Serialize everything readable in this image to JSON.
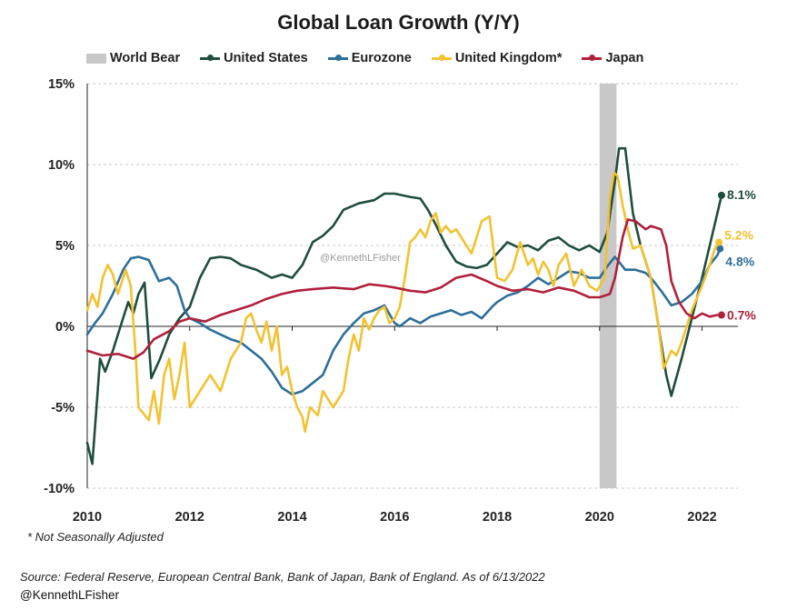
{
  "chart_data": {
    "type": "line",
    "title": "Global Loan Growth (Y/Y)",
    "xlabel": "",
    "ylabel": "",
    "xlim": [
      2010,
      2022.7
    ],
    "ylim": [
      -10,
      15
    ],
    "grid": true,
    "legend_position": "top",
    "x_ticks": [
      2010,
      2012,
      2014,
      2016,
      2018,
      2020,
      2022
    ],
    "x_tick_labels": [
      "2010",
      "2012",
      "2014",
      "2016",
      "2018",
      "2020",
      "2022"
    ],
    "y_ticks": [
      15,
      10,
      5,
      0,
      -5,
      -10
    ],
    "y_tick_labels": [
      "15%",
      "10%",
      "5%",
      "0%",
      "-5%",
      "-10%"
    ],
    "shaded_regions": [
      {
        "name": "World Bear",
        "start": 2020.0,
        "end": 2020.33,
        "color": "#c8c8c8"
      }
    ],
    "series": [
      {
        "name": "United States",
        "color": "#1f4e3d",
        "end_label": "8.1%",
        "points": [
          [
            2010.0,
            -7.2
          ],
          [
            2010.1,
            -8.5
          ],
          [
            2010.25,
            -2.0
          ],
          [
            2010.35,
            -2.8
          ],
          [
            2010.5,
            -1.5
          ],
          [
            2010.65,
            0.0
          ],
          [
            2010.8,
            1.5
          ],
          [
            2010.9,
            0.8
          ],
          [
            2011.0,
            2.0
          ],
          [
            2011.12,
            2.7
          ],
          [
            2011.25,
            -3.2
          ],
          [
            2011.42,
            -2.0
          ],
          [
            2011.6,
            -0.5
          ],
          [
            2011.8,
            0.5
          ],
          [
            2012.0,
            1.2
          ],
          [
            2012.2,
            3.0
          ],
          [
            2012.4,
            4.2
          ],
          [
            2012.6,
            4.3
          ],
          [
            2012.8,
            4.2
          ],
          [
            2013.0,
            3.8
          ],
          [
            2013.3,
            3.5
          ],
          [
            2013.6,
            3.0
          ],
          [
            2013.8,
            3.2
          ],
          [
            2014.0,
            3.0
          ],
          [
            2014.2,
            3.8
          ],
          [
            2014.4,
            5.2
          ],
          [
            2014.6,
            5.6
          ],
          [
            2014.8,
            6.2
          ],
          [
            2015.0,
            7.2
          ],
          [
            2015.3,
            7.6
          ],
          [
            2015.6,
            7.8
          ],
          [
            2015.8,
            8.2
          ],
          [
            2016.0,
            8.2
          ],
          [
            2016.3,
            8.0
          ],
          [
            2016.5,
            7.9
          ],
          [
            2016.65,
            7.2
          ],
          [
            2016.8,
            6.3
          ],
          [
            2017.0,
            5.0
          ],
          [
            2017.2,
            4.0
          ],
          [
            2017.4,
            3.7
          ],
          [
            2017.6,
            3.6
          ],
          [
            2017.8,
            3.8
          ],
          [
            2018.0,
            4.5
          ],
          [
            2018.2,
            5.2
          ],
          [
            2018.4,
            4.9
          ],
          [
            2018.6,
            5.0
          ],
          [
            2018.8,
            4.7
          ],
          [
            2019.0,
            5.3
          ],
          [
            2019.2,
            5.5
          ],
          [
            2019.4,
            5.0
          ],
          [
            2019.6,
            4.7
          ],
          [
            2019.8,
            5.0
          ],
          [
            2020.0,
            4.6
          ],
          [
            2020.15,
            5.8
          ],
          [
            2020.3,
            9.0
          ],
          [
            2020.38,
            11.0
          ],
          [
            2020.5,
            11.0
          ],
          [
            2020.65,
            7.0
          ],
          [
            2020.8,
            5.0
          ],
          [
            2021.0,
            3.0
          ],
          [
            2021.15,
            0.0
          ],
          [
            2021.3,
            -3.0
          ],
          [
            2021.4,
            -4.3
          ],
          [
            2021.6,
            -2.0
          ],
          [
            2021.8,
            0.5
          ],
          [
            2022.0,
            3.0
          ],
          [
            2022.15,
            5.0
          ],
          [
            2022.3,
            7.0
          ],
          [
            2022.38,
            8.1
          ]
        ]
      },
      {
        "name": "Eurozone",
        "color": "#2e6f99",
        "end_label": "4.8%",
        "points": [
          [
            2010.0,
            -0.5
          ],
          [
            2010.15,
            0.2
          ],
          [
            2010.3,
            0.8
          ],
          [
            2010.5,
            2.0
          ],
          [
            2010.7,
            3.5
          ],
          [
            2010.85,
            4.2
          ],
          [
            2011.0,
            4.3
          ],
          [
            2011.2,
            4.1
          ],
          [
            2011.4,
            2.8
          ],
          [
            2011.6,
            3.0
          ],
          [
            2011.75,
            2.5
          ],
          [
            2011.9,
            1.0
          ],
          [
            2012.0,
            0.5
          ],
          [
            2012.2,
            0.2
          ],
          [
            2012.4,
            -0.2
          ],
          [
            2012.6,
            -0.5
          ],
          [
            2012.8,
            -0.8
          ],
          [
            2013.0,
            -1.0
          ],
          [
            2013.2,
            -1.5
          ],
          [
            2013.4,
            -2.0
          ],
          [
            2013.6,
            -2.8
          ],
          [
            2013.8,
            -3.8
          ],
          [
            2014.0,
            -4.2
          ],
          [
            2014.2,
            -4.0
          ],
          [
            2014.4,
            -3.5
          ],
          [
            2014.6,
            -3.0
          ],
          [
            2014.8,
            -1.5
          ],
          [
            2015.0,
            -0.5
          ],
          [
            2015.2,
            0.2
          ],
          [
            2015.4,
            0.8
          ],
          [
            2015.6,
            1.0
          ],
          [
            2015.8,
            1.3
          ],
          [
            2016.0,
            0.2
          ],
          [
            2016.1,
            0.0
          ],
          [
            2016.3,
            0.5
          ],
          [
            2016.5,
            0.2
          ],
          [
            2016.7,
            0.6
          ],
          [
            2016.9,
            0.8
          ],
          [
            2017.1,
            1.0
          ],
          [
            2017.3,
            0.7
          ],
          [
            2017.5,
            0.9
          ],
          [
            2017.7,
            0.5
          ],
          [
            2017.9,
            1.2
          ],
          [
            2018.0,
            1.5
          ],
          [
            2018.2,
            1.9
          ],
          [
            2018.4,
            2.1
          ],
          [
            2018.6,
            2.5
          ],
          [
            2018.8,
            3.0
          ],
          [
            2019.0,
            2.6
          ],
          [
            2019.2,
            3.0
          ],
          [
            2019.4,
            3.4
          ],
          [
            2019.6,
            3.3
          ],
          [
            2019.8,
            3.0
          ],
          [
            2020.0,
            3.0
          ],
          [
            2020.15,
            3.7
          ],
          [
            2020.3,
            4.3
          ],
          [
            2020.5,
            3.5
          ],
          [
            2020.7,
            3.5
          ],
          [
            2020.9,
            3.3
          ],
          [
            2021.0,
            3.0
          ],
          [
            2021.2,
            2.2
          ],
          [
            2021.4,
            1.3
          ],
          [
            2021.6,
            1.5
          ],
          [
            2021.8,
            2.0
          ],
          [
            2022.0,
            2.8
          ],
          [
            2022.15,
            3.8
          ],
          [
            2022.3,
            4.4
          ],
          [
            2022.35,
            4.8
          ]
        ]
      },
      {
        "name": "United Kingdom*",
        "color": "#f2c232",
        "end_label": "5.2%",
        "points": [
          [
            2010.0,
            1.0
          ],
          [
            2010.1,
            2.0
          ],
          [
            2010.2,
            1.2
          ],
          [
            2010.3,
            3.0
          ],
          [
            2010.4,
            3.8
          ],
          [
            2010.5,
            3.2
          ],
          [
            2010.6,
            2.0
          ],
          [
            2010.75,
            3.5
          ],
          [
            2010.85,
            2.5
          ],
          [
            2010.95,
            -2.0
          ],
          [
            2011.0,
            -5.0
          ],
          [
            2011.2,
            -5.8
          ],
          [
            2011.3,
            -4.0
          ],
          [
            2011.4,
            -6.0
          ],
          [
            2011.5,
            -3.0
          ],
          [
            2011.6,
            -2.0
          ],
          [
            2011.7,
            -4.5
          ],
          [
            2011.8,
            -3.0
          ],
          [
            2011.9,
            -1.0
          ],
          [
            2012.0,
            -5.0
          ],
          [
            2012.2,
            -4.0
          ],
          [
            2012.4,
            -3.0
          ],
          [
            2012.6,
            -4.0
          ],
          [
            2012.8,
            -2.0
          ],
          [
            2013.0,
            -1.0
          ],
          [
            2013.1,
            0.5
          ],
          [
            2013.2,
            0.8
          ],
          [
            2013.3,
            -0.2
          ],
          [
            2013.4,
            -1.0
          ],
          [
            2013.5,
            0.3
          ],
          [
            2013.6,
            -1.5
          ],
          [
            2013.7,
            0.0
          ],
          [
            2013.8,
            -3.0
          ],
          [
            2013.9,
            -2.5
          ],
          [
            2014.0,
            -4.0
          ],
          [
            2014.1,
            -5.0
          ],
          [
            2014.2,
            -5.6
          ],
          [
            2014.25,
            -6.5
          ],
          [
            2014.35,
            -5.0
          ],
          [
            2014.5,
            -5.5
          ],
          [
            2014.6,
            -4.0
          ],
          [
            2014.8,
            -5.0
          ],
          [
            2015.0,
            -4.0
          ],
          [
            2015.1,
            -2.0
          ],
          [
            2015.2,
            -0.5
          ],
          [
            2015.3,
            -1.5
          ],
          [
            2015.4,
            0.5
          ],
          [
            2015.5,
            -0.2
          ],
          [
            2015.6,
            0.5
          ],
          [
            2015.7,
            1.0
          ],
          [
            2015.8,
            1.2
          ],
          [
            2015.9,
            0.2
          ],
          [
            2016.0,
            0.5
          ],
          [
            2016.1,
            1.2
          ],
          [
            2016.2,
            3.0
          ],
          [
            2016.3,
            5.2
          ],
          [
            2016.4,
            5.5
          ],
          [
            2016.5,
            6.0
          ],
          [
            2016.6,
            5.5
          ],
          [
            2016.7,
            6.5
          ],
          [
            2016.8,
            7.0
          ],
          [
            2016.9,
            5.8
          ],
          [
            2017.0,
            6.2
          ],
          [
            2017.1,
            5.8
          ],
          [
            2017.2,
            6.0
          ],
          [
            2017.3,
            5.5
          ],
          [
            2017.5,
            4.5
          ],
          [
            2017.7,
            6.5
          ],
          [
            2017.85,
            6.8
          ],
          [
            2018.0,
            3.0
          ],
          [
            2018.15,
            2.8
          ],
          [
            2018.3,
            3.5
          ],
          [
            2018.45,
            5.2
          ],
          [
            2018.6,
            3.8
          ],
          [
            2018.7,
            4.2
          ],
          [
            2018.8,
            3.2
          ],
          [
            2018.9,
            4.0
          ],
          [
            2019.0,
            3.5
          ],
          [
            2019.1,
            2.5
          ],
          [
            2019.2,
            3.8
          ],
          [
            2019.35,
            4.5
          ],
          [
            2019.5,
            2.5
          ],
          [
            2019.65,
            3.5
          ],
          [
            2019.8,
            2.5
          ],
          [
            2019.95,
            2.2
          ],
          [
            2020.1,
            3.0
          ],
          [
            2020.2,
            8.0
          ],
          [
            2020.28,
            9.5
          ],
          [
            2020.35,
            9.3
          ],
          [
            2020.45,
            7.5
          ],
          [
            2020.55,
            6.0
          ],
          [
            2020.65,
            4.8
          ],
          [
            2020.8,
            5.0
          ],
          [
            2021.0,
            3.0
          ],
          [
            2021.15,
            0.0
          ],
          [
            2021.25,
            -2.6
          ],
          [
            2021.4,
            -1.5
          ],
          [
            2021.5,
            -1.8
          ],
          [
            2021.6,
            -1.0
          ],
          [
            2021.8,
            1.0
          ],
          [
            2022.0,
            2.5
          ],
          [
            2022.15,
            3.8
          ],
          [
            2022.25,
            4.8
          ],
          [
            2022.33,
            5.2
          ]
        ]
      },
      {
        "name": "Japan",
        "color": "#b0203b",
        "end_label": "0.7%",
        "points": [
          [
            2010.0,
            -1.5
          ],
          [
            2010.3,
            -1.8
          ],
          [
            2010.6,
            -1.7
          ],
          [
            2010.9,
            -2.0
          ],
          [
            2011.1,
            -1.6
          ],
          [
            2011.3,
            -0.8
          ],
          [
            2011.6,
            -0.3
          ],
          [
            2011.8,
            0.3
          ],
          [
            2012.0,
            0.5
          ],
          [
            2012.3,
            0.3
          ],
          [
            2012.6,
            0.7
          ],
          [
            2012.9,
            1.0
          ],
          [
            2013.2,
            1.3
          ],
          [
            2013.5,
            1.7
          ],
          [
            2013.8,
            2.0
          ],
          [
            2014.1,
            2.2
          ],
          [
            2014.4,
            2.3
          ],
          [
            2014.8,
            2.4
          ],
          [
            2015.2,
            2.3
          ],
          [
            2015.5,
            2.6
          ],
          [
            2015.8,
            2.5
          ],
          [
            2016.0,
            2.4
          ],
          [
            2016.3,
            2.2
          ],
          [
            2016.6,
            2.1
          ],
          [
            2016.9,
            2.4
          ],
          [
            2017.2,
            3.0
          ],
          [
            2017.5,
            3.2
          ],
          [
            2017.8,
            2.8
          ],
          [
            2018.0,
            2.5
          ],
          [
            2018.3,
            2.2
          ],
          [
            2018.6,
            2.3
          ],
          [
            2018.9,
            2.1
          ],
          [
            2019.2,
            2.4
          ],
          [
            2019.5,
            2.2
          ],
          [
            2019.8,
            1.8
          ],
          [
            2020.0,
            1.8
          ],
          [
            2020.2,
            2.0
          ],
          [
            2020.3,
            3.0
          ],
          [
            2020.45,
            5.5
          ],
          [
            2020.55,
            6.6
          ],
          [
            2020.7,
            6.5
          ],
          [
            2020.9,
            6.0
          ],
          [
            2021.0,
            6.2
          ],
          [
            2021.2,
            6.0
          ],
          [
            2021.3,
            5.0
          ],
          [
            2021.4,
            2.8
          ],
          [
            2021.55,
            1.5
          ],
          [
            2021.7,
            0.8
          ],
          [
            2021.85,
            0.5
          ],
          [
            2022.0,
            0.8
          ],
          [
            2022.15,
            0.6
          ],
          [
            2022.3,
            0.7
          ],
          [
            2022.38,
            0.7
          ]
        ]
      }
    ]
  },
  "legend": {
    "world_bear": "World Bear",
    "us": "United States",
    "eurozone": "Eurozone",
    "uk": "United Kingdom*",
    "japan": "Japan"
  },
  "watermark": "@KennethLFisher",
  "footnote": "* Not Seasonally Adjusted",
  "source": "Source: Federal Reserve, European Central Bank, Bank of Japan, Bank of England. As of 6/13/2022",
  "handle": "@KennethLFisher",
  "colors": {
    "gridline": "#c8c8c8",
    "axis": "#222222",
    "bear_shade": "#c8c8c8"
  }
}
